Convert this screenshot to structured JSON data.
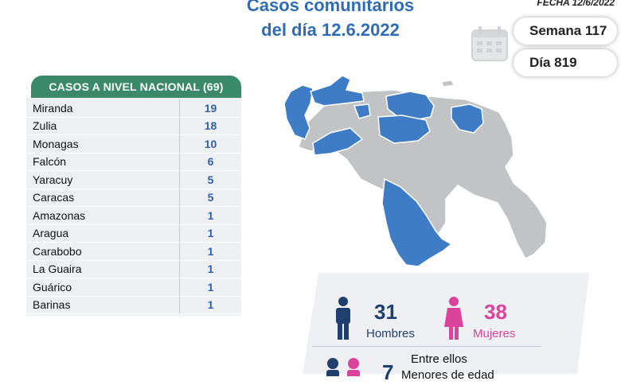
{
  "header": {
    "title_line1": "Casos comunitarios",
    "title_line2": "del día 12.6.2022",
    "fecha": "FECHA 12/6/2022",
    "semana": "Semana 117",
    "dia": "Día 819"
  },
  "table": {
    "heading": "CASOS A NIVEL NACIONAL  (69)",
    "rows": [
      {
        "state": "Miranda",
        "cases": "19"
      },
      {
        "state": "Zulia",
        "cases": "18"
      },
      {
        "state": "Monagas",
        "cases": "10"
      },
      {
        "state": "Falcón",
        "cases": "6"
      },
      {
        "state": "Yaracuy",
        "cases": "5"
      },
      {
        "state": "Caracas",
        "cases": "5"
      },
      {
        "state": "Amazonas",
        "cases": "1"
      },
      {
        "state": "Aragua",
        "cases": "1"
      },
      {
        "state": "Carabobo",
        "cases": "1"
      },
      {
        "state": "La Guaira",
        "cases": "1"
      },
      {
        "state": "Guárico",
        "cases": "1"
      },
      {
        "state": "Barinas",
        "cases": "1"
      }
    ]
  },
  "stats": {
    "hombres_count": "31",
    "hombres_label": "Hombres",
    "mujeres_count": "38",
    "mujeres_label": "Mujeres",
    "entre_ellos": "Entre ellos",
    "menores_count": "7",
    "menores_label": "Menores de edad"
  },
  "colors": {
    "title_blue": "#2f6cb5",
    "table_header_green": "#3a8a6a",
    "map_affected_blue": "#3e7cc6",
    "map_other_gray": "#c1c3c5",
    "hombres_navy": "#1f3f6e",
    "mujeres_pink": "#d9449a"
  },
  "icons": [
    "calendar-icon",
    "man-icon",
    "woman-icon",
    "children-icon"
  ]
}
